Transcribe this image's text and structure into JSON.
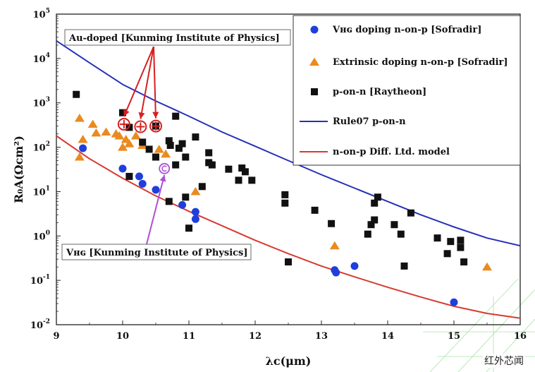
{
  "chart_data": {
    "type": "scatter",
    "xlabel": "λᴄ(μm)",
    "ylabel": "R₀A(Ωcm²)",
    "xlim": [
      9,
      16
    ],
    "ylim_log10": [
      -2,
      5
    ],
    "x_ticks": [
      "9",
      "10",
      "11",
      "12",
      "13",
      "14",
      "15",
      "16"
    ],
    "y_ticks": [
      {
        "base": "10",
        "exp": "-2"
      },
      {
        "base": "10",
        "exp": "-1"
      },
      {
        "base": "10",
        "exp": "0"
      },
      {
        "base": "10",
        "exp": "1"
      },
      {
        "base": "10",
        "exp": "2"
      },
      {
        "base": "10",
        "exp": "3"
      },
      {
        "base": "10",
        "exp": "4"
      },
      {
        "base": "10",
        "exp": "5"
      }
    ],
    "series": [
      {
        "name": "Vʜɢ doping n-on-p [Sofradir]",
        "marker": "circle",
        "color": "#1f3fdb",
        "points": [
          [
            9.4,
            95
          ],
          [
            10.0,
            33
          ],
          [
            10.25,
            22
          ],
          [
            10.3,
            15
          ],
          [
            10.5,
            11
          ],
          [
            10.9,
            5
          ],
          [
            11.1,
            3.5
          ],
          [
            11.1,
            2.4
          ],
          [
            13.2,
            0.17
          ],
          [
            13.22,
            0.15
          ],
          [
            13.5,
            0.21
          ],
          [
            15.0,
            0.032
          ]
        ]
      },
      {
        "name": "Extrinsic doping n-on-p [Sofradir]",
        "marker": "triangle",
        "color": "#ea8a1f",
        "points": [
          [
            9.35,
            450
          ],
          [
            9.4,
            150
          ],
          [
            9.35,
            60
          ],
          [
            9.55,
            330
          ],
          [
            9.6,
            210
          ],
          [
            9.75,
            220
          ],
          [
            9.9,
            200
          ],
          [
            9.95,
            180
          ],
          [
            10.05,
            150
          ],
          [
            10.0,
            100
          ],
          [
            10.1,
            120
          ],
          [
            10.2,
            180
          ],
          [
            10.3,
            110
          ],
          [
            10.55,
            90
          ],
          [
            10.65,
            70
          ],
          [
            11.1,
            10
          ],
          [
            13.2,
            0.6
          ],
          [
            15.5,
            0.2
          ]
        ]
      },
      {
        "name": "p-on-n [Raytheon]",
        "marker": "square",
        "color": "#111111",
        "points": [
          [
            9.3,
            1550
          ],
          [
            10.0,
            600
          ],
          [
            10.1,
            280
          ],
          [
            10.3,
            130
          ],
          [
            10.4,
            90
          ],
          [
            10.5,
            300
          ],
          [
            10.5,
            60
          ],
          [
            10.7,
            140
          ],
          [
            10.72,
            110
          ],
          [
            10.8,
            500
          ],
          [
            10.85,
            95
          ],
          [
            10.9,
            120
          ],
          [
            10.8,
            40
          ],
          [
            10.95,
            60
          ],
          [
            11.1,
            170
          ],
          [
            11.3,
            75
          ],
          [
            11.3,
            45
          ],
          [
            11.35,
            40
          ],
          [
            10.1,
            22
          ],
          [
            10.7,
            6
          ],
          [
            10.95,
            7.5
          ],
          [
            11.0,
            1.5
          ],
          [
            11.2,
            13
          ],
          [
            11.6,
            32
          ],
          [
            11.75,
            18
          ],
          [
            11.8,
            34
          ],
          [
            11.85,
            28
          ],
          [
            11.95,
            18
          ],
          [
            12.45,
            8.5
          ],
          [
            12.45,
            5.5
          ],
          [
            12.5,
            0.26
          ],
          [
            12.9,
            3.8
          ],
          [
            13.15,
            1.9
          ],
          [
            13.7,
            1.1
          ],
          [
            13.75,
            1.8
          ],
          [
            13.8,
            2.3
          ],
          [
            13.8,
            5.5
          ],
          [
            13.85,
            7.5
          ],
          [
            14.1,
            1.8
          ],
          [
            14.2,
            1.1
          ],
          [
            14.25,
            0.21
          ],
          [
            14.35,
            3.3
          ],
          [
            14.75,
            0.9
          ],
          [
            14.9,
            0.4
          ],
          [
            14.95,
            0.75
          ],
          [
            15.1,
            0.8
          ],
          [
            15.1,
            0.55
          ],
          [
            15.15,
            0.26
          ]
        ]
      }
    ],
    "curves": [
      {
        "name": "Rule07 p-on-n",
        "color": "#2630b8",
        "points": [
          [
            9.0,
            25000
          ],
          [
            9.5,
            8000
          ],
          [
            10.0,
            2600
          ],
          [
            10.5,
            1100
          ],
          [
            11.0,
            500
          ],
          [
            11.5,
            220
          ],
          [
            12.0,
            105
          ],
          [
            12.5,
            50
          ],
          [
            13.0,
            24
          ],
          [
            13.5,
            12
          ],
          [
            14.0,
            6
          ],
          [
            14.5,
            3
          ],
          [
            15.0,
            1.6
          ],
          [
            15.5,
            0.9
          ],
          [
            16.0,
            0.6
          ]
        ]
      },
      {
        "name": "n-on-p Diff. Ltd. model",
        "color": "#d83a30",
        "points": [
          [
            9.0,
            180
          ],
          [
            9.5,
            55
          ],
          [
            10.0,
            20
          ],
          [
            10.5,
            8
          ],
          [
            11.0,
            3.6
          ],
          [
            11.5,
            1.7
          ],
          [
            12.0,
            0.8
          ],
          [
            12.5,
            0.4
          ],
          [
            13.0,
            0.21
          ],
          [
            13.5,
            0.12
          ],
          [
            14.0,
            0.07
          ],
          [
            14.5,
            0.042
          ],
          [
            15.0,
            0.026
          ],
          [
            15.5,
            0.018
          ],
          [
            16.0,
            0.014
          ]
        ]
      }
    ],
    "legend": {
      "placement": "top-right",
      "items": [
        {
          "label": "Vʜɢ doping n-on-p [Sofradir]",
          "marker": "circle",
          "color": "#1f3fdb"
        },
        {
          "label": "Extrinsic doping n-on-p [Sofradir]",
          "marker": "triangle",
          "color": "#ea8a1f"
        },
        {
          "label": "p-on-n [Raytheon]",
          "marker": "square",
          "color": "#111111"
        },
        {
          "label": "Rule07 p-on-n",
          "marker": "line",
          "color": "#2630b8"
        },
        {
          "label": "n-on-p Diff. Ltd. model",
          "marker": "line",
          "color": "#d83a30"
        }
      ]
    },
    "annotations": {
      "au_doped": {
        "label": "Au-doped [Kunming Institute of Physics]",
        "color": "#d61f1f",
        "points": [
          [
            10.02,
            330
          ],
          [
            10.27,
            290
          ],
          [
            10.5,
            300
          ]
        ]
      },
      "vhg": {
        "label": "Vʜɢ [Kunming Institute of Physics]",
        "color": "#b04fd6",
        "point": [
          10.63,
          33
        ]
      }
    }
  },
  "watermark": "红外芯闻"
}
